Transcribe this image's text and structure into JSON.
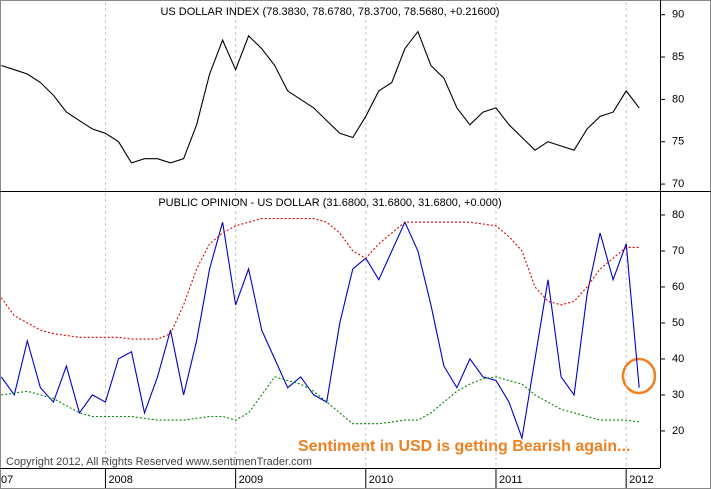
{
  "chart_data": [
    {
      "type": "line",
      "title": "US DOLLAR INDEX (78.3830, 78.6780, 78.3700, 78.5680, +0.21600)",
      "x": [
        2007.2,
        2007.3,
        2007.4,
        2007.5,
        2007.6,
        2007.7,
        2007.8,
        2007.9,
        2008.0,
        2008.1,
        2008.2,
        2008.3,
        2008.4,
        2008.5,
        2008.6,
        2008.7,
        2008.8,
        2008.9,
        2009.0,
        2009.1,
        2009.2,
        2009.3,
        2009.4,
        2009.5,
        2009.6,
        2009.7,
        2009.8,
        2009.9,
        2010.0,
        2010.1,
        2010.2,
        2010.3,
        2010.4,
        2010.5,
        2010.6,
        2010.7,
        2010.8,
        2010.9,
        2011.0,
        2011.1,
        2011.2,
        2011.3,
        2011.4,
        2011.5,
        2011.6,
        2011.7,
        2011.8,
        2011.9,
        2012.0,
        2012.1
      ],
      "series": [
        {
          "name": "US DOLLAR INDEX",
          "color": "#000000",
          "values": [
            84,
            83.5,
            83,
            82,
            80.5,
            78.5,
            77.5,
            76.5,
            76,
            75,
            72.5,
            73,
            73,
            72.5,
            73,
            77,
            83,
            87,
            83.5,
            87.5,
            86,
            84,
            81,
            80,
            79,
            77.5,
            76,
            75.5,
            78,
            81,
            82,
            86,
            88,
            84,
            82.5,
            79,
            77,
            78.5,
            79,
            77,
            75.5,
            74,
            75,
            74.5,
            74,
            76.5,
            78,
            78.5,
            81,
            79
          ]
        }
      ],
      "xlim": [
        2007.19,
        2012.26
      ],
      "xticks": [
        {
          "value": 2007,
          "label": "07"
        },
        2008,
        2009,
        2010,
        2011,
        2012
      ],
      "ylim": [
        69.3,
        91.5
      ],
      "yticks": [
        70,
        75,
        80,
        85,
        90
      ],
      "grid": true
    },
    {
      "type": "line",
      "title": "PUBLIC OPINION - US DOLLAR (31.6800, 31.6800, 31.6800, +0.000)",
      "annotation": "Sentiment in USD is getting Bearish again...",
      "footer": "Copyright 2012, All Rights Reserved  www.sentimenTrader.com",
      "x": [
        2007.2,
        2007.3,
        2007.4,
        2007.5,
        2007.6,
        2007.7,
        2007.8,
        2007.9,
        2008.0,
        2008.1,
        2008.2,
        2008.3,
        2008.4,
        2008.5,
        2008.6,
        2008.7,
        2008.8,
        2008.9,
        2009.0,
        2009.1,
        2009.2,
        2009.3,
        2009.4,
        2009.5,
        2009.6,
        2009.7,
        2009.8,
        2009.9,
        2010.0,
        2010.1,
        2010.2,
        2010.3,
        2010.4,
        2010.5,
        2010.6,
        2010.7,
        2010.8,
        2010.9,
        2011.0,
        2011.1,
        2011.2,
        2011.3,
        2011.4,
        2011.5,
        2011.6,
        2011.7,
        2011.8,
        2011.9,
        2012.0,
        2012.1
      ],
      "series": [
        {
          "name": "PUBLIC OPINION",
          "color": "#0000cc",
          "style": "solid",
          "values": [
            35,
            30,
            45,
            32,
            28,
            38,
            25,
            30,
            28,
            40,
            42,
            25,
            35,
            48,
            30,
            45,
            65,
            78,
            55,
            65,
            48,
            40,
            32,
            35,
            30,
            28,
            50,
            65,
            68,
            62,
            70,
            78,
            70,
            55,
            38,
            32,
            40,
            35,
            34,
            28,
            18,
            40,
            62,
            35,
            30,
            58,
            75,
            62,
            72,
            32
          ]
        },
        {
          "name": "Upper band",
          "color": "#dd0000",
          "style": "dashed",
          "values": [
            57,
            52,
            50,
            48,
            47,
            46.5,
            46,
            46,
            46,
            46,
            45.5,
            45.5,
            45.5,
            47,
            55,
            65,
            72,
            75,
            77,
            78,
            79,
            79,
            79,
            79,
            79,
            78,
            75,
            70,
            68,
            72,
            75,
            78,
            78,
            78,
            78,
            78,
            78,
            77.5,
            77,
            74,
            70,
            60,
            56,
            55,
            56,
            60,
            65,
            68,
            71,
            71
          ]
        },
        {
          "name": "Lower band",
          "color": "#008800",
          "style": "dashed",
          "values": [
            30,
            30.5,
            31,
            30,
            29,
            27,
            25,
            24,
            24,
            24,
            24,
            23.5,
            23,
            23,
            23,
            23.5,
            24,
            24,
            23,
            25,
            30,
            35,
            34,
            33,
            31,
            28,
            25,
            22,
            22,
            22,
            22.5,
            23,
            23,
            25,
            28,
            31,
            33,
            34.5,
            35,
            34,
            33,
            30,
            28,
            26,
            25,
            24,
            23,
            23,
            23,
            22.5
          ]
        }
      ],
      "xlim": [
        2007.19,
        2012.26
      ],
      "xticks": [
        {
          "value": 2007,
          "label": "07"
        },
        2008,
        2009,
        2010,
        2011,
        2012
      ],
      "ylim": [
        9.7,
        86.1
      ],
      "yticks": [
        20,
        30,
        40,
        50,
        60,
        70,
        80
      ],
      "grid": true
    }
  ]
}
